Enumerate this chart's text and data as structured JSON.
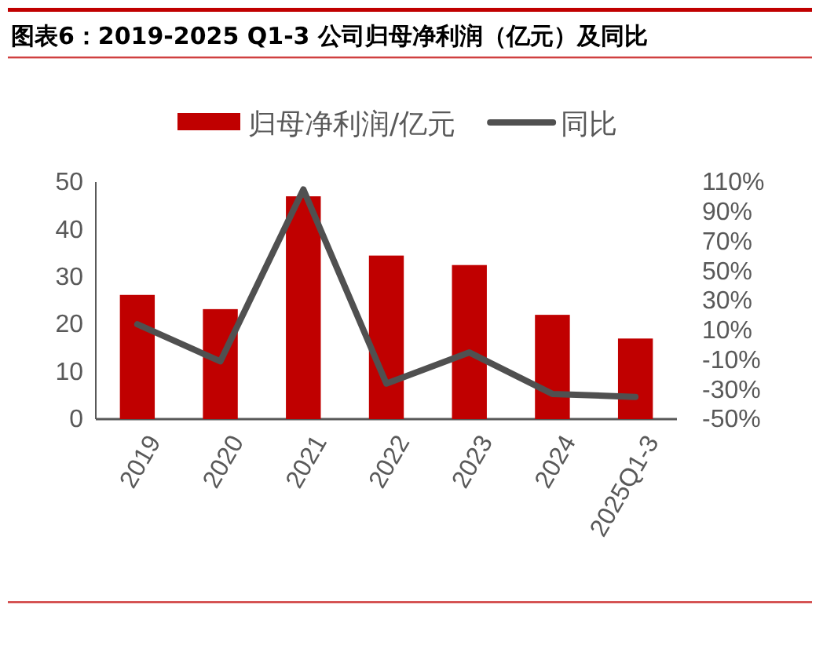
{
  "chart_data": {
    "type": "bar",
    "title": "图表6：2019-2025 Q1-3 公司归母净利润（亿元）及同比",
    "categories": [
      "2019",
      "2020",
      "2021",
      "2022",
      "2023",
      "2024",
      "2025Q1-3"
    ],
    "series": [
      {
        "name": "归母净利润/亿元",
        "color": "#c00000",
        "values": [
          26.2,
          23.2,
          47.0,
          34.5,
          32.5,
          22.0,
          17.0
        ]
      },
      {
        "name": "同比",
        "type": "line",
        "axis": "y2",
        "color": "#505050",
        "values": [
          14,
          -11,
          105,
          -26,
          -5,
          -33,
          -35
        ]
      }
    ],
    "ylim": [
      0,
      50
    ],
    "yticks": [
      0,
      10,
      20,
      30,
      40,
      50
    ],
    "y2lim": [
      -50,
      110
    ],
    "y2ticks": [
      {
        "value": -50,
        "label": "-50%"
      },
      {
        "value": -30,
        "label": "-30%"
      },
      {
        "value": -10,
        "label": "-10%"
      },
      {
        "value": 10,
        "label": "10%"
      },
      {
        "value": 30,
        "label": "30%"
      },
      {
        "value": 50,
        "label": "50%"
      },
      {
        "value": 70,
        "label": "70%"
      },
      {
        "value": 90,
        "label": "90%"
      },
      {
        "value": 110,
        "label": "110%"
      }
    ],
    "legend": "top",
    "grid": false,
    "marker": "none",
    "line_style": "solid"
  }
}
